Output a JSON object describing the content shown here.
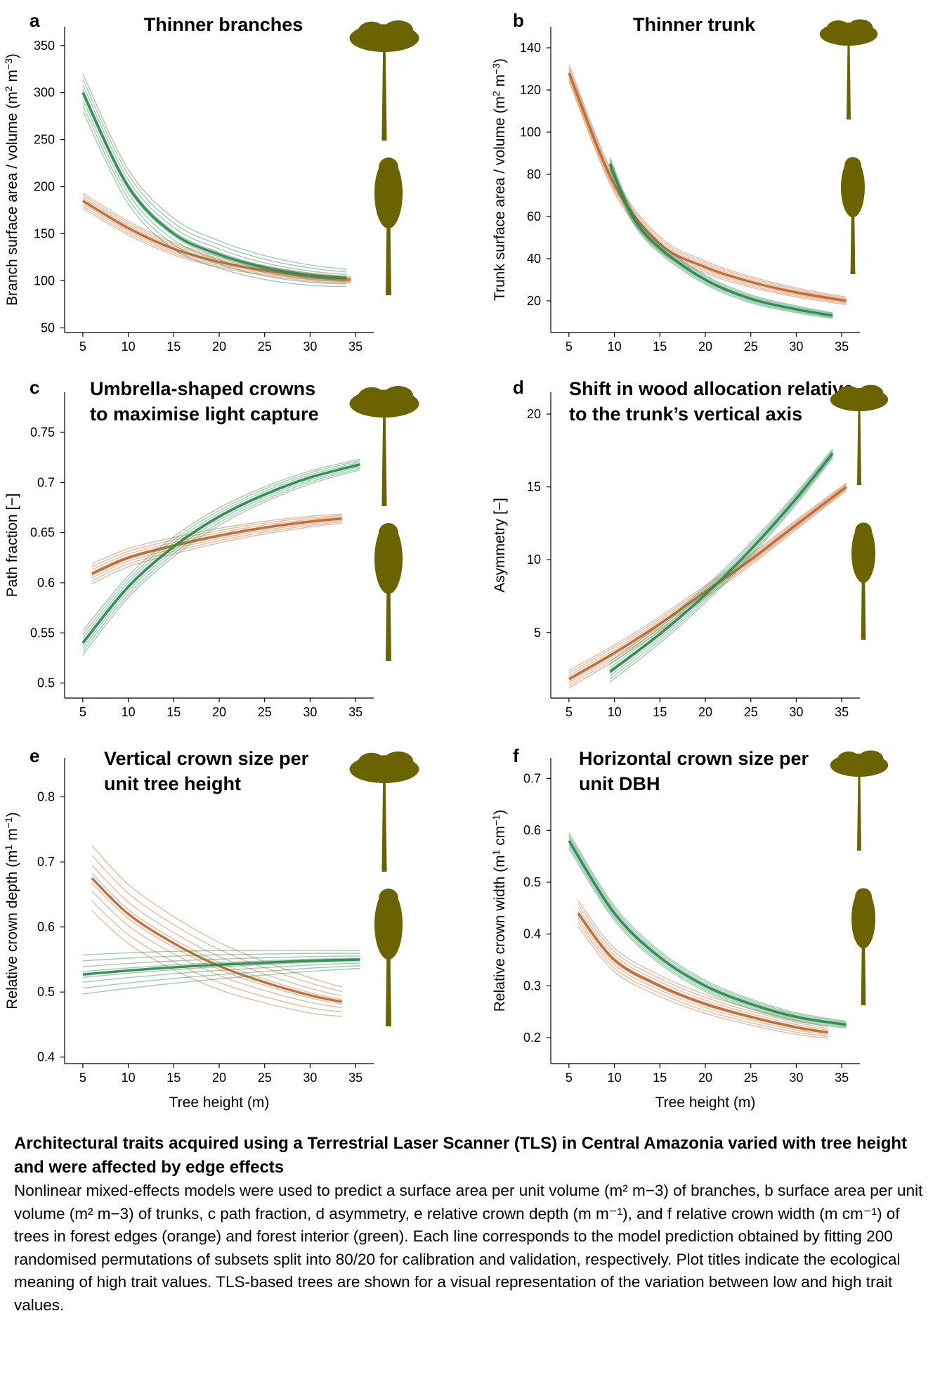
{
  "colors": {
    "edge": "#c1692e",
    "interior": "#2d8a50",
    "tree": "#6b6300"
  },
  "figure": {
    "xlabel": "Tree height (m)",
    "legend": {
      "edge": "forest edges (orange)",
      "interior": "forest interior (green)"
    }
  },
  "chart_data": [
    {
      "panel": "a",
      "type": "line",
      "title": "Thinner branches",
      "xlabel": "",
      "ylabel": "Branch surface area / volume (m2 m-3)",
      "xlim": [
        3,
        37
      ],
      "ylim": [
        45,
        370
      ],
      "xticks": [
        5,
        10,
        15,
        20,
        25,
        30,
        35
      ],
      "yticks": [
        50,
        100,
        150,
        200,
        250,
        300,
        350
      ],
      "series": [
        {
          "group": "edge",
          "x": [
            5,
            10,
            15,
            20,
            25,
            30,
            34.5
          ],
          "y": [
            185,
            156,
            134,
            120,
            111,
            104,
            101
          ],
          "spread": 8
        },
        {
          "group": "interior",
          "x": [
            5,
            10,
            15,
            20,
            25,
            30,
            34
          ],
          "y": [
            300,
            200,
            150,
            128,
            114,
            106,
            103
          ],
          "spread": 20
        }
      ]
    },
    {
      "panel": "b",
      "type": "line",
      "title": "Thinner trunk",
      "xlabel": "",
      "ylabel": "Trunk surface area / volume (m2 m-3)",
      "xlim": [
        3,
        37
      ],
      "ylim": [
        5,
        150
      ],
      "xticks": [
        5,
        10,
        15,
        20,
        25,
        30,
        35
      ],
      "yticks": [
        20,
        40,
        60,
        80,
        100,
        120,
        140
      ],
      "series": [
        {
          "group": "edge",
          "x": [
            5,
            10,
            15,
            20,
            25,
            30,
            35.5
          ],
          "y": [
            128,
            75,
            47,
            36,
            29,
            24,
            20
          ],
          "spread": 4
        },
        {
          "group": "interior",
          "x": [
            9.5,
            12,
            15,
            20,
            25,
            30,
            34
          ],
          "y": [
            85,
            60,
            45,
            30,
            21,
            16,
            13
          ],
          "spread": 3
        }
      ]
    },
    {
      "panel": "c",
      "type": "line",
      "title": "Umbrella-shaped crowns to maximise light capture",
      "title_lines": [
        "Umbrella-shaped crowns",
        "to maximise light capture"
      ],
      "xlabel": "",
      "ylabel": "Path fraction [−]",
      "xlim": [
        3,
        37
      ],
      "ylim": [
        0.485,
        0.79
      ],
      "xticks": [
        5,
        10,
        15,
        20,
        25,
        30,
        35
      ],
      "yticks": [
        0.5,
        0.55,
        0.6,
        0.65,
        0.7,
        0.75
      ],
      "series": [
        {
          "group": "edge",
          "x": [
            6,
            10,
            15,
            20,
            25,
            30,
            33.5
          ],
          "y": [
            0.609,
            0.625,
            0.637,
            0.647,
            0.655,
            0.661,
            0.664
          ],
          "spread": 0.01
        },
        {
          "group": "interior",
          "x": [
            5,
            10,
            15,
            20,
            25,
            30,
            35.5
          ],
          "y": [
            0.54,
            0.596,
            0.636,
            0.666,
            0.688,
            0.705,
            0.718
          ],
          "spread": 0.012
        }
      ]
    },
    {
      "panel": "d",
      "type": "line",
      "title": "Shift in wood allocation relative to the trunk’s vertical axis",
      "title_lines": [
        "Shift in wood allocation relative",
        "to the trunk’s vertical axis"
      ],
      "xlabel": "",
      "ylabel": "Asymmetry [−]",
      "xlim": [
        3,
        37
      ],
      "ylim": [
        0.5,
        21.5
      ],
      "xticks": [
        5,
        10,
        15,
        20,
        25,
        30,
        35
      ],
      "yticks": [
        5,
        10,
        15,
        20
      ],
      "series": [
        {
          "group": "edge",
          "x": [
            5,
            10,
            15,
            20,
            25,
            30,
            35.5
          ],
          "y": [
            1.8,
            3.6,
            5.6,
            7.8,
            10,
            12.4,
            15
          ],
          "spread": 0.6
        },
        {
          "group": "interior",
          "x": [
            9.5,
            15,
            20,
            25,
            30,
            34
          ],
          "y": [
            2.3,
            4.9,
            7.6,
            10.7,
            14.2,
            17.3
          ],
          "spread": 0.7
        }
      ]
    },
    {
      "panel": "e",
      "type": "line",
      "title": "Vertical crown size per unit tree height",
      "title_lines": [
        "Vertical crown size per",
        "unit tree height"
      ],
      "xlabel": "Tree height (m)",
      "ylabel": "Relative crown depth (m1 m-1)",
      "xlim": [
        3,
        37
      ],
      "ylim": [
        0.39,
        0.86
      ],
      "xticks": [
        5,
        10,
        15,
        20,
        25,
        30,
        35
      ],
      "yticks": [
        0.4,
        0.5,
        0.6,
        0.7,
        0.8
      ],
      "series": [
        {
          "group": "edge",
          "x": [
            6,
            10,
            15,
            20,
            25,
            30,
            33.5
          ],
          "y": [
            0.675,
            0.62,
            0.575,
            0.54,
            0.515,
            0.495,
            0.485
          ],
          "spread": 0.05
        },
        {
          "group": "interior",
          "x": [
            5,
            10,
            15,
            20,
            25,
            30,
            35.5
          ],
          "y": [
            0.527,
            0.533,
            0.538,
            0.542,
            0.545,
            0.548,
            0.55
          ],
          "spread": 0.03
        }
      ]
    },
    {
      "panel": "f",
      "type": "line",
      "title": "Horizontal crown size per unit DBH",
      "title_lines": [
        "Horizontal crown size per",
        "unit DBH"
      ],
      "xlabel": "Tree height (m)",
      "ylabel": "Relative crown width (m1 cm-1)",
      "xlim": [
        3,
        37
      ],
      "ylim": [
        0.15,
        0.74
      ],
      "xticks": [
        5,
        10,
        15,
        20,
        25,
        30,
        35
      ],
      "yticks": [
        0.2,
        0.3,
        0.4,
        0.5,
        0.6,
        0.7
      ],
      "series": [
        {
          "group": "edge",
          "x": [
            6,
            10,
            15,
            20,
            25,
            30,
            33.5
          ],
          "y": [
            0.44,
            0.35,
            0.3,
            0.265,
            0.24,
            0.22,
            0.21
          ],
          "spread": 0.025
        },
        {
          "group": "interior",
          "x": [
            5,
            10,
            15,
            20,
            25,
            30,
            35.5
          ],
          "y": [
            0.58,
            0.44,
            0.355,
            0.3,
            0.265,
            0.24,
            0.225
          ],
          "spread": 0.015
        }
      ]
    }
  ],
  "caption": {
    "title": "Architectural traits acquired using a Terrestrial Laser Scanner (TLS) in Central Amazonia varied with tree height and were affected by edge effects",
    "body": "Nonlinear mixed-effects models were used to predict a surface area per unit volume (m² m−3) of branches, b surface area per unit volume (m² m−3) of trunks, c path fraction, d asymmetry, e relative crown depth (m m⁻¹), and f relative crown width (m cm⁻¹) of trees in forest edges (orange) and forest interior (green). Each line corresponds to the model prediction obtained by fitting 200 randomised permutations of subsets split into 80/20 for calibration and validation, respectively. Plot titles indicate the ecological meaning of high trait values. TLS-based trees are shown for a visual representation of the variation between low and high trait values."
  }
}
